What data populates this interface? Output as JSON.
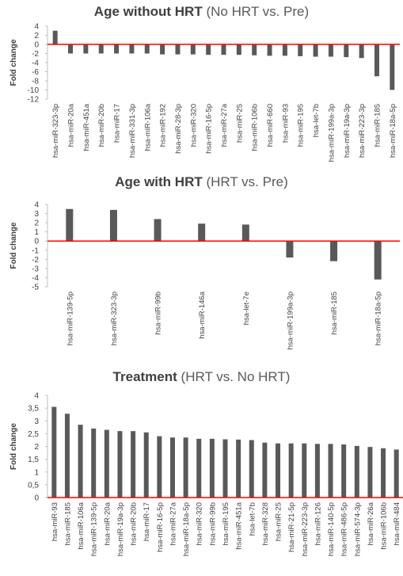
{
  "chart_data": [
    {
      "type": "bar",
      "title": "Age without HRT",
      "subtitle": "(No HRT vs. Pre)",
      "ylabel": "Fold change",
      "xlabel": "",
      "ylim": [
        -12,
        4
      ],
      "yticks": [
        4,
        2,
        0,
        -2,
        -4,
        -6,
        -8,
        -10,
        -12
      ],
      "grid": false,
      "categories": [
        "hsa-miR-323-3p",
        "hsa-miR-20a",
        "hsa-miR-451a",
        "hsa-miR-20b",
        "hsa-miR-17",
        "hsa-miR-331-3p",
        "hsa-miR-106a",
        "hsa-miR-192",
        "hsa-miR-28-3p",
        "hsa-miR-320",
        "hsa-miR-16-5p",
        "hsa-miR-27a",
        "hsa-miR-25",
        "hsa-miR-106b",
        "hsa-miR-660",
        "hsa-miR-93",
        "hsa-miR-195",
        "hsa-let-7b",
        "hsa-miR-199a-3p",
        "hsa-miR-19a-3p",
        "hsa-miR-223-3p",
        "hsa-miR-185",
        "hsa-miR-18a-5p"
      ],
      "values": [
        3,
        -2,
        -2,
        -2,
        -2,
        -2,
        -2,
        -2.2,
        -2.2,
        -2.2,
        -2.3,
        -2.3,
        -2.3,
        -2.4,
        -2.5,
        -2.5,
        -2.6,
        -2.7,
        -2.7,
        -2.8,
        -3,
        -7,
        -10
      ],
      "colors": {
        "bar": "#595959",
        "zero_line": "#ff0000",
        "axis_text": "#404040"
      }
    },
    {
      "type": "bar",
      "title": "Age with HRT",
      "subtitle": "(HRT vs. Pre)",
      "ylabel": "Fold change",
      "xlabel": "",
      "ylim": [
        -5,
        4
      ],
      "yticks": [
        4,
        3,
        2,
        1,
        0,
        -1,
        -2,
        -3,
        -4,
        -5
      ],
      "grid": false,
      "categories": [
        "hsa-miR-139-5p",
        "hsa-miR-323-3p",
        "hsa-miR-99b",
        "hsa-miR-146a",
        "hsa-let-7e",
        "hsa-miR-199a-3p",
        "hsa-miR-185",
        "hsa-miR-18a-5p"
      ],
      "values": [
        3.5,
        3.4,
        2.4,
        1.9,
        1.8,
        -1.8,
        -2.2,
        -4.2
      ],
      "colors": {
        "bar": "#595959",
        "zero_line": "#ff0000",
        "axis_text": "#404040"
      }
    },
    {
      "type": "bar",
      "title": "Treatment",
      "subtitle": "(HRT vs. No HRT)",
      "ylabel": "Fold change",
      "xlabel": "",
      "ylim": [
        0,
        4
      ],
      "yticks": [
        "4",
        "3,5",
        "3",
        "2,5",
        "2",
        "1,5",
        "1",
        "0,5",
        "0"
      ],
      "grid": false,
      "categories": [
        "hsa-miR-93",
        "hsa-miR-185",
        "hsa-miR-106a",
        "hsa-miR-139-5p",
        "hsa-miR-20a",
        "hsa-miR-19a-3p",
        "hsa-miR-20b",
        "hsa-miR-17",
        "hsa-miR-16-5p",
        "hsa-miR-27a",
        "hsa-miR-18a-5p",
        "hsa-miR-320",
        "hsa-miR-99b",
        "hsa-miR-195",
        "hsa-miR-451a",
        "hsa-let-7b",
        "hsa-miR-328",
        "hsa-miR-25",
        "hsa-miR-21-5p",
        "hsa-miR-223-3p",
        "hsa-miR-126",
        "hsa-miR-140-5p",
        "hsa-miR-486-5p",
        "hsa-miR-574-3p",
        "hsa-miR-26a",
        "hsa-miR-106b",
        "hsa-miR-484"
      ],
      "values": [
        3.55,
        3.28,
        2.85,
        2.7,
        2.65,
        2.6,
        2.6,
        2.55,
        2.4,
        2.35,
        2.35,
        2.3,
        2.3,
        2.28,
        2.27,
        2.25,
        2.15,
        2.12,
        2.12,
        2.12,
        2.1,
        2.1,
        2.08,
        2.02,
        1.98,
        1.93,
        1.88
      ],
      "colors": {
        "bar": "#595959",
        "zero_line": "#ff0000",
        "axis_text": "#404040"
      }
    }
  ]
}
